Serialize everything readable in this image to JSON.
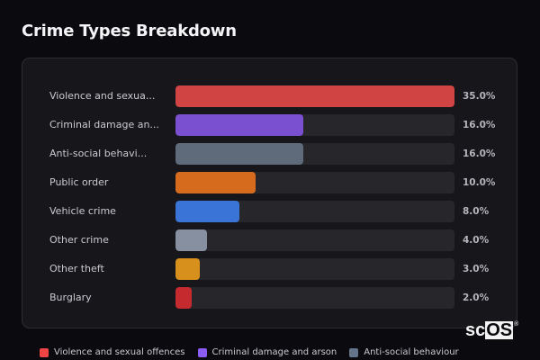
{
  "header": {
    "title": "Crime Types Breakdown"
  },
  "chart_data": {
    "type": "bar",
    "orientation": "horizontal",
    "title": "Crime Types Breakdown",
    "xlabel": "",
    "ylabel": "",
    "value_format": "percent",
    "scale_max": 35.0,
    "grid": false,
    "legend_position": "bottom",
    "categories": [
      "Violence and sexual offences",
      "Criminal damage and arson",
      "Anti-social behaviour",
      "Public order",
      "Vehicle crime",
      "Other crime",
      "Other theft",
      "Burglary"
    ],
    "display_labels": [
      "Violence and sexua...",
      "Criminal damage an...",
      "Anti-social behavi...",
      "Public order",
      "Vehicle crime",
      "Other crime",
      "Other theft",
      "Burglary"
    ],
    "values": [
      35.0,
      16.0,
      16.0,
      10.0,
      8.0,
      4.0,
      3.0,
      2.0
    ],
    "value_labels": [
      "35.0%",
      "16.0%",
      "16.0%",
      "10.0%",
      "8.0%",
      "4.0%",
      "3.0%",
      "2.0%"
    ],
    "colors": [
      "#d04444",
      "#7a4fd0",
      "#5f6b7a",
      "#d66b1e",
      "#3a74d6",
      "#8690a0",
      "#d8901c",
      "#c42a2e"
    ]
  },
  "legend": {
    "items": [
      {
        "label": "Violence and sexual offences",
        "color": "#ef4444"
      },
      {
        "label": "Criminal damage and arson",
        "color": "#8b5cf6"
      },
      {
        "label": "Anti-social behaviour",
        "color": "#64748b"
      }
    ]
  },
  "watermark": {
    "left": "sc",
    "boxed": "OS",
    "mark": "®"
  }
}
